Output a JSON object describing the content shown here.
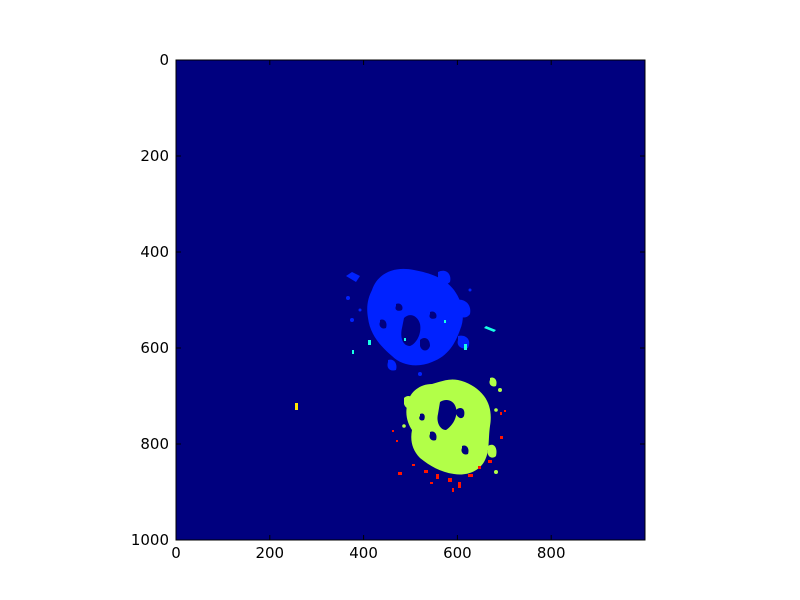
{
  "chart_data": {
    "type": "heatmap",
    "title": "",
    "xlabel": "",
    "ylabel": "",
    "xlim": [
      0,
      1000
    ],
    "ylim": [
      1000,
      0
    ],
    "y_axis_inverted": true,
    "grid": false,
    "colormap": "jet",
    "background_color": "#00007f",
    "x_ticks": [
      {
        "value": 0,
        "label": "0"
      },
      {
        "value": 200,
        "label": "200"
      },
      {
        "value": 400,
        "label": "400"
      },
      {
        "value": 600,
        "label": "600"
      },
      {
        "value": 800,
        "label": "800"
      }
    ],
    "y_ticks": [
      {
        "value": 0,
        "label": "0"
      },
      {
        "value": 200,
        "label": "200"
      },
      {
        "value": 400,
        "label": "400"
      },
      {
        "value": 600,
        "label": "600"
      },
      {
        "value": 800,
        "label": "800"
      },
      {
        "value": 1000,
        "label": "1000"
      }
    ],
    "regions": [
      {
        "name": "blue-cluster",
        "color": "#0022ff",
        "center": [
          470,
          565
        ],
        "extent": [
          [
            350,
            460
          ],
          [
            620,
            650
          ]
        ]
      },
      {
        "name": "yellow-green-cluster",
        "color": "#b2ff48",
        "center": [
          590,
          810
        ],
        "extent": [
          [
            490,
            680
          ],
          [
            700,
            885
          ]
        ]
      },
      {
        "name": "red-speckles",
        "color": "#ff1500",
        "center": [
          580,
          900
        ],
        "extent": [
          [
            450,
            840
          ],
          [
            710,
            920
          ]
        ]
      },
      {
        "name": "cyan-speckles",
        "color": "#19ffe4",
        "center": [
          430,
          590
        ],
        "extent": [
          [
            350,
            560
          ],
          [
            690,
            640
          ]
        ]
      },
      {
        "name": "isolated-yellow-point",
        "color": "#ffe600",
        "center": [
          258,
          733
        ],
        "extent": [
          [
            255,
            725
          ],
          [
            262,
            740
          ]
        ]
      }
    ]
  }
}
